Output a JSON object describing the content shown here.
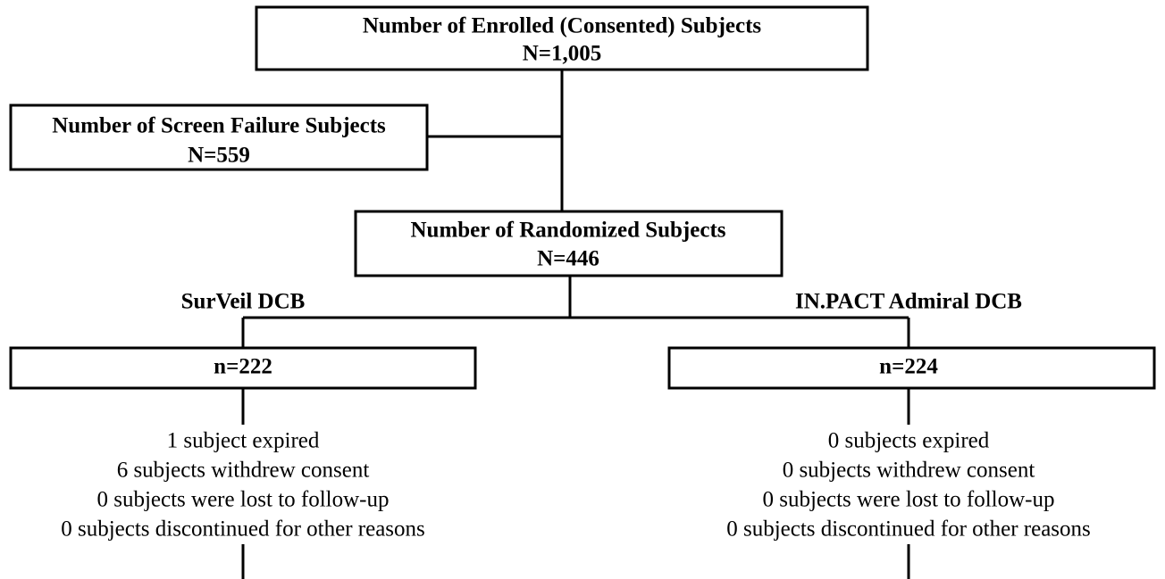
{
  "nodes": [
    {
      "label": "Number of Enrolled (Consented) Subjects",
      "count": "N=1,005"
    },
    {
      "label": "Number of Screen Failure Subjects",
      "count": "N=559"
    },
    {
      "label": "Number of Randomized Subjects",
      "count": "N=446"
    }
  ],
  "arms": [
    {
      "name": "SurVeil DCB",
      "count": "n=222",
      "outcomes": [
        "1 subject expired",
        "6 subjects withdrew consent",
        "0 subjects were lost to follow-up",
        "0 subjects discontinued for other reasons"
      ]
    },
    {
      "name": "IN.PACT Admiral DCB",
      "count": "n=224",
      "outcomes": [
        "0 subjects expired",
        "0 subjects withdrew consent",
        "0 subjects were lost to follow-up",
        "0 subjects discontinued for other reasons"
      ]
    }
  ]
}
